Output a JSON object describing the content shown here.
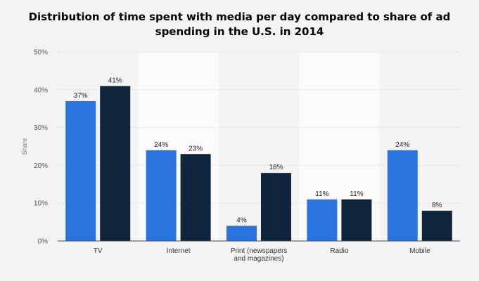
{
  "chart_data": {
    "type": "bar",
    "title_lines": [
      "Distribution of time spent with media per day compared to share of ad",
      "spending in the U.S. in 2014"
    ],
    "ylabel": "Share",
    "xlabel": "",
    "categories": [
      "TV",
      "Internet",
      "Print (newspapers and magazines)",
      "Radio",
      "Mobile"
    ],
    "category_label_lines": [
      [
        "TV"
      ],
      [
        "Internet"
      ],
      [
        "Print (newspapers",
        "and magazines)"
      ],
      [
        "Radio"
      ],
      [
        "Mobile"
      ]
    ],
    "series": [
      {
        "values": [
          37,
          24,
          4,
          11,
          24
        ],
        "labels": [
          "37%",
          "24%",
          "4%",
          "11%",
          "24%"
        ],
        "color": "#2a74e0"
      },
      {
        "values": [
          41,
          23,
          18,
          11,
          8
        ],
        "labels": [
          "41%",
          "23%",
          "18%",
          "11%",
          "8%"
        ],
        "color": "#0f253b"
      }
    ],
    "ylim": [
      0,
      50
    ],
    "yticks": [
      0,
      10,
      20,
      30,
      40,
      50
    ],
    "ytick_labels": [
      "0%",
      "10%",
      "20%",
      "30%",
      "40%",
      "50%"
    ],
    "grid": true,
    "legend": "none",
    "band_color": "#fbfbfb"
  }
}
